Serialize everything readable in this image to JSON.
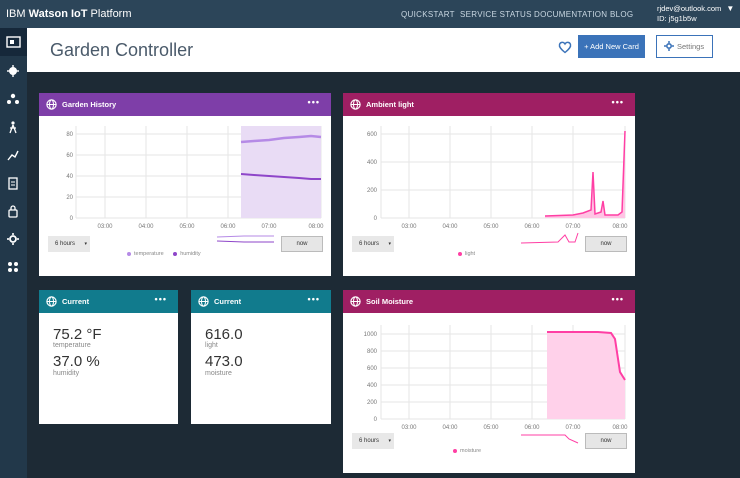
{
  "topbar": {
    "brand_prefix": "IBM ",
    "brand_bold": "Watson IoT",
    "brand_suffix": " Platform",
    "nav": [
      "QUICKSTART",
      "SERVICE STATUS",
      "DOCUMENTATION",
      "BLOG"
    ],
    "user_email": "rjdev@outlook.com",
    "user_id": "ID: j5g1b5w",
    "dropdown_arrow": "▼"
  },
  "sidebar": {
    "icons": [
      "dashboard-icon",
      "devices-icon",
      "members-icon",
      "apps-icon",
      "rules-icon",
      "usage-icon",
      "security-icon",
      "settings-icon",
      "extensions-icon"
    ]
  },
  "header": {
    "title": "Garden Controller",
    "add_card_label": "+ Add New Card",
    "settings_label": "Settings"
  },
  "cards": {
    "garden_history": {
      "title": "Garden History",
      "menu": "•••",
      "range_label": "6 hours",
      "now_label": "now",
      "legend": [
        "temperature",
        "humidity"
      ],
      "colors": {
        "temperature": "#b58ae6",
        "humidity": "#8e46c9"
      },
      "y_ticks": [
        "80",
        "60",
        "40",
        "20",
        "0"
      ],
      "x_ticks": [
        "03:00",
        "04:00",
        "05:00",
        "06:00",
        "07:00",
        "08:00"
      ]
    },
    "ambient_light": {
      "title": "Ambient light",
      "menu": "•••",
      "range_label": "6 hours",
      "now_label": "now",
      "legend": [
        "light"
      ],
      "colors": {
        "light": "#ff3fa4"
      },
      "y_ticks": [
        "600",
        "400",
        "200",
        "0"
      ],
      "x_ticks": [
        "03:00",
        "04:00",
        "05:00",
        "06:00",
        "07:00",
        "08:00"
      ]
    },
    "current1": {
      "title": "Current",
      "menu": "•••",
      "value1": "75.2 °F",
      "label1": "temperature",
      "value2": "37.0 %",
      "label2": "humidity"
    },
    "current2": {
      "title": "Current",
      "menu": "•••",
      "value1": "616.0",
      "label1": "light",
      "value2": "473.0",
      "label2": "moisture"
    },
    "soil_moisture": {
      "title": "Soil Moisture",
      "menu": "•••",
      "range_label": "6 hours",
      "now_label": "now",
      "legend": [
        "moisture"
      ],
      "colors": {
        "moisture": "#ff3fa4"
      },
      "y_ticks": [
        "1000",
        "800",
        "600",
        "400",
        "200",
        "0"
      ],
      "x_ticks": [
        "03:00",
        "04:00",
        "05:00",
        "06:00",
        "07:00",
        "08:00"
      ]
    }
  },
  "chart_data": [
    {
      "type": "line",
      "title": "Garden History",
      "x_range": [
        "02:30",
        "08:10"
      ],
      "ylim": [
        0,
        85
      ],
      "series": [
        {
          "name": "temperature",
          "x": [
            "06:25",
            "07:00",
            "07:30",
            "08:00",
            "08:10"
          ],
          "values": [
            73,
            74,
            75,
            76,
            76
          ]
        },
        {
          "name": "humidity",
          "x": [
            "06:25",
            "07:00",
            "07:30",
            "08:00",
            "08:10"
          ],
          "values": [
            38,
            37,
            36,
            35,
            35
          ]
        }
      ]
    },
    {
      "type": "line",
      "title": "Ambient light",
      "x_range": [
        "02:30",
        "08:10"
      ],
      "ylim": [
        0,
        620
      ],
      "series": [
        {
          "name": "light",
          "x": [
            "06:25",
            "07:00",
            "07:20",
            "07:40",
            "07:42",
            "07:50",
            "07:52",
            "08:00",
            "08:05",
            "08:07"
          ],
          "values": [
            10,
            20,
            30,
            60,
            330,
            30,
            140,
            20,
            20,
            600
          ]
        }
      ]
    },
    {
      "type": "line",
      "title": "Soil Moisture",
      "x_range": [
        "02:30",
        "08:10"
      ],
      "ylim": [
        0,
        1080
      ],
      "series": [
        {
          "name": "moisture",
          "x": [
            "06:25",
            "07:00",
            "07:30",
            "07:55",
            "08:00",
            "08:05",
            "08:07"
          ],
          "values": [
            1020,
            1020,
            1020,
            1015,
            950,
            550,
            460
          ]
        }
      ]
    }
  ]
}
